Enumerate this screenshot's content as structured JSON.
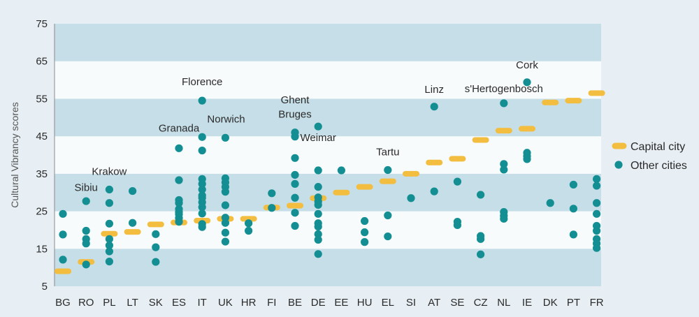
{
  "colors": {
    "band_dark": "#c6dee7",
    "band_light": "#f7fbfc",
    "capital": "#f3bd3f",
    "other": "#138f93",
    "page_bg": "#e7eff4"
  },
  "chart_data": {
    "type": "scatter",
    "ylabel": "Cultural Vibrancy scores",
    "ylim": [
      5,
      75
    ],
    "yticks": [
      5,
      15,
      25,
      35,
      45,
      55,
      65,
      75
    ],
    "categories": [
      "BG",
      "RO",
      "PL",
      "LT",
      "SK",
      "ES",
      "IT",
      "UK",
      "HR",
      "FI",
      "BE",
      "DE",
      "EE",
      "HU",
      "EL",
      "SI",
      "AT",
      "SE",
      "CZ",
      "NL",
      "IE",
      "DK",
      "PT",
      "FR"
    ],
    "legend_position": "right",
    "series": [
      {
        "name": "Capital city",
        "marker": "dash",
        "values": [
          9,
          11.5,
          19,
          19.5,
          21.5,
          22,
          22.5,
          23,
          23,
          26,
          26.5,
          28.5,
          30,
          31.5,
          33,
          35,
          38,
          39,
          44,
          46.5,
          47,
          54,
          54.5,
          56.5
        ]
      },
      {
        "name": "Other cities",
        "marker": "dot",
        "points": [
          [
            "BG",
            24.3
          ],
          [
            "BG",
            18.8
          ],
          [
            "BG",
            12.1
          ],
          [
            "RO",
            27.7
          ],
          [
            "RO",
            19.8
          ],
          [
            "RO",
            17.6
          ],
          [
            "RO",
            16.4
          ],
          [
            "RO",
            10.8
          ],
          [
            "PL",
            30.8
          ],
          [
            "PL",
            27.2
          ],
          [
            "PL",
            21.7
          ],
          [
            "PL",
            17.6
          ],
          [
            "PL",
            15.9
          ],
          [
            "PL",
            14.3
          ],
          [
            "PL",
            11.6
          ],
          [
            "LT",
            30.4
          ],
          [
            "LT",
            21.9
          ],
          [
            "SK",
            18.9
          ],
          [
            "SK",
            15.4
          ],
          [
            "SK",
            11.5
          ],
          [
            "ES",
            41.8
          ],
          [
            "ES",
            33.3
          ],
          [
            "ES",
            28.0
          ],
          [
            "ES",
            27.2
          ],
          [
            "ES",
            25.6
          ],
          [
            "ES",
            24.8
          ],
          [
            "ES",
            24.2
          ],
          [
            "ES",
            23.2
          ],
          [
            "ES",
            22.2
          ],
          [
            "IT",
            54.5
          ],
          [
            "IT",
            44.8
          ],
          [
            "IT",
            41.2
          ],
          [
            "IT",
            33.6
          ],
          [
            "IT",
            32.3
          ],
          [
            "IT",
            30.8
          ],
          [
            "IT",
            29.2
          ],
          [
            "IT",
            28.6
          ],
          [
            "IT",
            27.4
          ],
          [
            "IT",
            26.1
          ],
          [
            "IT",
            24.4
          ],
          [
            "IT",
            21.6
          ],
          [
            "IT",
            20.8
          ],
          [
            "UK",
            44.6
          ],
          [
            "UK",
            33.8
          ],
          [
            "UK",
            32.7
          ],
          [
            "UK",
            31.5
          ],
          [
            "UK",
            30.2
          ],
          [
            "UK",
            26.6
          ],
          [
            "UK",
            23.3
          ],
          [
            "UK",
            21.9
          ],
          [
            "UK",
            19.3
          ],
          [
            "UK",
            16.9
          ],
          [
            "HR",
            21.8
          ],
          [
            "HR",
            19.8
          ],
          [
            "FI",
            29.8
          ],
          [
            "FI",
            25.9
          ],
          [
            "BE",
            46.0
          ],
          [
            "BE",
            44.9
          ],
          [
            "BE",
            39.2
          ],
          [
            "BE",
            34.7
          ],
          [
            "BE",
            32.3
          ],
          [
            "BE",
            28.6
          ],
          [
            "BE",
            24.6
          ],
          [
            "BE",
            21.1
          ],
          [
            "DE",
            47.6
          ],
          [
            "DE",
            35.9
          ],
          [
            "DE",
            31.5
          ],
          [
            "DE",
            28.7
          ],
          [
            "DE",
            27.6
          ],
          [
            "DE",
            26.7
          ],
          [
            "DE",
            24.3
          ],
          [
            "DE",
            21.8
          ],
          [
            "DE",
            20.9
          ],
          [
            "DE",
            18.9
          ],
          [
            "DE",
            17.4
          ],
          [
            "DE",
            13.6
          ],
          [
            "EE",
            35.9
          ],
          [
            "HU",
            22.4
          ],
          [
            "HU",
            19.4
          ],
          [
            "HU",
            16.8
          ],
          [
            "EL",
            36.0
          ],
          [
            "EL",
            23.9
          ],
          [
            "EL",
            18.3
          ],
          [
            "SI",
            28.5
          ],
          [
            "AT",
            52.9
          ],
          [
            "AT",
            30.3
          ],
          [
            "SE",
            32.9
          ],
          [
            "SE",
            22.2
          ],
          [
            "SE",
            21.3
          ],
          [
            "CZ",
            29.4
          ],
          [
            "CZ",
            18.4
          ],
          [
            "CZ",
            17.6
          ],
          [
            "CZ",
            13.5
          ],
          [
            "NL",
            53.8
          ],
          [
            "NL",
            37.6
          ],
          [
            "NL",
            36.1
          ],
          [
            "NL",
            24.8
          ],
          [
            "NL",
            23.8
          ],
          [
            "NL",
            23.0
          ],
          [
            "IE",
            59.4
          ],
          [
            "IE",
            40.6
          ],
          [
            "IE",
            39.7
          ],
          [
            "IE",
            38.9
          ],
          [
            "DK",
            27.2
          ],
          [
            "PT",
            32.1
          ],
          [
            "PT",
            25.7
          ],
          [
            "PT",
            18.8
          ],
          [
            "FR",
            33.6
          ],
          [
            "FR",
            31.8
          ],
          [
            "FR",
            27.2
          ],
          [
            "FR",
            24.3
          ],
          [
            "FR",
            21.1
          ],
          [
            "FR",
            19.8
          ],
          [
            "FR",
            17.6
          ],
          [
            "FR",
            16.4
          ],
          [
            "FR",
            15.2
          ]
        ]
      }
    ],
    "annotations": [
      {
        "text": "Sibiu",
        "category": "RO",
        "y": 30.4,
        "anchor": "middle"
      },
      {
        "text": "Krakow",
        "category": "PL",
        "y": 34.7,
        "anchor": "middle"
      },
      {
        "text": "Granada",
        "category": "ES",
        "y": 46.2,
        "anchor": "middle"
      },
      {
        "text": "Florence",
        "category": "IT",
        "y": 58.6,
        "anchor": "middle"
      },
      {
        "text": "Norwich",
        "category": "UK",
        "y": 48.7,
        "anchor": "start"
      },
      {
        "text": "Ghent",
        "category": "BE",
        "y": 53.8,
        "anchor": "middle"
      },
      {
        "text": "Bruges",
        "category": "BE",
        "y": 50.0,
        "anchor": "middle"
      },
      {
        "text": "Weimar",
        "category": "DE",
        "y": 43.7,
        "anchor": "middle"
      },
      {
        "text": "Tartu",
        "category": "EL",
        "y": 39.9,
        "anchor": "middle"
      },
      {
        "text": "Linz",
        "category": "AT",
        "y": 56.6,
        "anchor": "middle"
      },
      {
        "text": "s'Hertogenbosch",
        "category": "NL",
        "y": 56.8,
        "anchor": "middle"
      },
      {
        "text": "Cork",
        "category": "IE",
        "y": 63.1,
        "anchor": "middle"
      }
    ]
  }
}
